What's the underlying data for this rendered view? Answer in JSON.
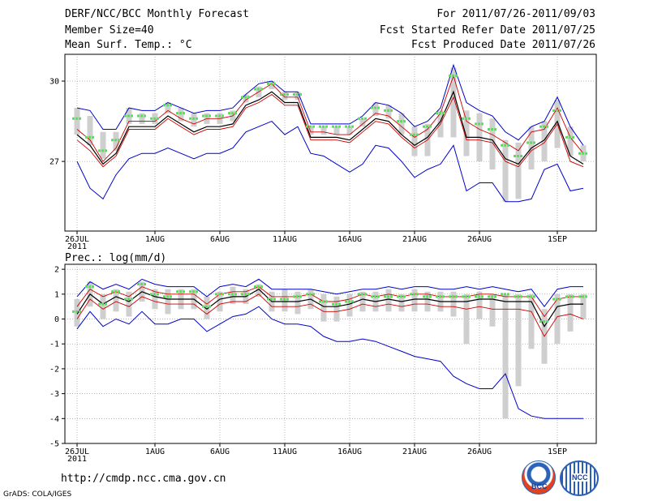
{
  "header": {
    "title": "DERF/NCC/BCC Monthly Forecast",
    "member_size": "Member Size=40",
    "var_label": "Mean Surf. Temp.: °C",
    "for_range": "For 2011/07/26-2011/09/03",
    "fcst_started": "Fcst Started Refer Date 2011/07/25",
    "fcst_produced": "Fcst Produced Date 2011/07/26"
  },
  "precip_label": "Prec.: log(mm/d)",
  "footer": {
    "url": "http://cmdp.ncc.cma.gov.cn",
    "grads": "GrADS: COLA/IGES"
  },
  "logos": {
    "left": "BCC",
    "right": "NCC"
  },
  "colors": {
    "max_min": "#0000cc",
    "spread": "#cc0000",
    "mean": "#000000",
    "obs": "#44ee44",
    "bars": "#cfcfcf",
    "grid": "#888888"
  },
  "chart_data": [
    {
      "type": "line",
      "title": "Mean Surf. Temp.: °C",
      "x": [
        0,
        1,
        2,
        3,
        4,
        5,
        6,
        7,
        8,
        9,
        10,
        11,
        12,
        13,
        14,
        15,
        16,
        17,
        18,
        19,
        20,
        21,
        22,
        23,
        24,
        25,
        26,
        27,
        28,
        29,
        30,
        31,
        32,
        33,
        34,
        35,
        36,
        37,
        38,
        39
      ],
      "x_tick_labels": [
        "26JUL\n2011",
        "1AUG",
        "6AUG",
        "11AUG",
        "16AUG",
        "21AUG",
        "26AUG",
        "1SEP"
      ],
      "x_tick_positions": [
        0,
        6,
        11,
        16,
        21,
        26,
        31,
        37
      ],
      "ylim": [
        24.4,
        31.0
      ],
      "y_ticks": [
        27,
        30
      ],
      "series": [
        {
          "name": "max",
          "values": [
            29.0,
            28.9,
            28.2,
            28.2,
            29.0,
            28.9,
            28.9,
            29.2,
            29.0,
            28.8,
            28.9,
            28.9,
            29.0,
            29.5,
            29.9,
            30.0,
            29.6,
            29.6,
            28.4,
            28.4,
            28.4,
            28.4,
            28.7,
            29.2,
            29.1,
            28.8,
            28.3,
            28.5,
            29.0,
            30.6,
            29.2,
            28.9,
            28.7,
            28.1,
            27.8,
            28.3,
            28.5,
            29.4,
            28.3,
            27.6
          ]
        },
        {
          "name": "upper_spread",
          "values": [
            28.2,
            27.8,
            27.0,
            27.5,
            28.5,
            28.5,
            28.5,
            28.9,
            28.6,
            28.4,
            28.6,
            28.6,
            28.7,
            29.3,
            29.6,
            29.9,
            29.4,
            29.4,
            28.1,
            28.1,
            28.0,
            28.0,
            28.4,
            28.8,
            28.7,
            28.3,
            27.9,
            28.2,
            28.8,
            30.2,
            28.5,
            28.2,
            28.0,
            27.7,
            27.4,
            28.1,
            28.2,
            29.0,
            27.9,
            27.3
          ]
        },
        {
          "name": "mean",
          "values": [
            28.0,
            27.6,
            26.9,
            27.3,
            28.3,
            28.3,
            28.3,
            28.7,
            28.4,
            28.1,
            28.3,
            28.3,
            28.4,
            29.1,
            29.3,
            29.6,
            29.2,
            29.2,
            27.9,
            27.9,
            27.9,
            27.8,
            28.2,
            28.6,
            28.5,
            28.0,
            27.6,
            27.9,
            28.5,
            29.6,
            27.9,
            27.9,
            27.8,
            27.1,
            26.9,
            27.5,
            27.8,
            28.5,
            27.2,
            26.9
          ]
        },
        {
          "name": "lower_spread",
          "values": [
            27.8,
            27.4,
            26.8,
            27.2,
            28.2,
            28.2,
            28.2,
            28.6,
            28.3,
            28.0,
            28.2,
            28.2,
            28.3,
            29.0,
            29.2,
            29.5,
            29.1,
            29.1,
            27.8,
            27.8,
            27.8,
            27.7,
            28.1,
            28.5,
            28.4,
            27.9,
            27.5,
            27.8,
            28.4,
            29.4,
            27.8,
            27.8,
            27.7,
            27.0,
            26.8,
            27.4,
            27.7,
            28.4,
            27.0,
            26.8
          ]
        },
        {
          "name": "min",
          "values": [
            27.0,
            26.0,
            25.6,
            26.5,
            27.1,
            27.3,
            27.3,
            27.5,
            27.3,
            27.1,
            27.3,
            27.3,
            27.5,
            28.1,
            28.3,
            28.5,
            28.0,
            28.3,
            27.3,
            27.2,
            26.9,
            26.6,
            26.9,
            27.6,
            27.5,
            27.0,
            26.4,
            26.7,
            26.9,
            27.6,
            25.9,
            26.2,
            26.2,
            25.5,
            25.5,
            25.6,
            26.7,
            26.9,
            25.9,
            26.0
          ]
        },
        {
          "name": "obs",
          "values": [
            28.6,
            27.9,
            27.4,
            27.8,
            28.7,
            28.7,
            28.6,
            29.1,
            28.8,
            28.6,
            28.7,
            28.7,
            28.8,
            29.4,
            29.7,
            29.9,
            29.5,
            29.5,
            28.3,
            28.3,
            28.3,
            28.3,
            28.6,
            29.0,
            28.9,
            28.5,
            28.0,
            28.3,
            28.8,
            30.2,
            28.6,
            28.4,
            28.2,
            27.6,
            27.2,
            27.7,
            28.3,
            28.9,
            27.9,
            27.3
          ]
        }
      ],
      "bars_low": [
        28.0,
        27.6,
        27.1,
        27.4,
        28.4,
        28.4,
        28.4,
        28.8,
        28.5,
        28.3,
        28.4,
        28.4,
        28.5,
        29.2,
        29.4,
        29.7,
        29.3,
        29.3,
        28.0,
        28.0,
        28.0,
        28.0,
        28.3,
        28.7,
        28.6,
        28.0,
        27.2,
        27.2,
        27.9,
        27.9,
        27.2,
        27.0,
        26.7,
        25.5,
        25.6,
        26.7,
        27.0,
        27.5,
        27.2,
        27.0
      ],
      "bars_high": [
        29.0,
        28.7,
        28.1,
        28.1,
        29.0,
        28.8,
        28.8,
        29.2,
        29.0,
        28.8,
        28.8,
        28.8,
        28.9,
        29.5,
        29.8,
        30.0,
        29.6,
        29.6,
        28.3,
        28.3,
        28.3,
        28.3,
        28.6,
        29.2,
        29.1,
        28.8,
        28.3,
        28.4,
        28.9,
        30.5,
        28.9,
        28.8,
        28.6,
        27.8,
        27.7,
        28.3,
        28.5,
        29.3,
        28.3,
        27.6
      ]
    },
    {
      "type": "line",
      "title": "Prec.: log(mm/d)",
      "x": [
        0,
        1,
        2,
        3,
        4,
        5,
        6,
        7,
        8,
        9,
        10,
        11,
        12,
        13,
        14,
        15,
        16,
        17,
        18,
        19,
        20,
        21,
        22,
        23,
        24,
        25,
        26,
        27,
        28,
        29,
        30,
        31,
        32,
        33,
        34,
        35,
        36,
        37,
        38,
        39
      ],
      "x_tick_labels": [
        "26JUL\n2011",
        "1AUG",
        "6AUG",
        "11AUG",
        "16AUG",
        "21AUG",
        "26AUG",
        "1SEP"
      ],
      "x_tick_positions": [
        0,
        6,
        11,
        16,
        21,
        26,
        31,
        37
      ],
      "ylim": [
        -5,
        2.2
      ],
      "y_ticks": [
        -5,
        -4,
        -3,
        -2,
        -1,
        0,
        1,
        2
      ],
      "series": [
        {
          "name": "max",
          "values": [
            0.9,
            1.5,
            1.2,
            1.4,
            1.2,
            1.6,
            1.4,
            1.3,
            1.3,
            1.3,
            0.9,
            1.3,
            1.4,
            1.3,
            1.6,
            1.2,
            1.2,
            1.2,
            1.2,
            1.1,
            1.0,
            1.1,
            1.2,
            1.2,
            1.3,
            1.2,
            1.3,
            1.3,
            1.2,
            1.2,
            1.3,
            1.2,
            1.3,
            1.2,
            1.1,
            1.2,
            0.5,
            1.2,
            1.3,
            1.3
          ]
        },
        {
          "name": "upper_spread",
          "values": [
            0.5,
            1.2,
            0.9,
            1.1,
            0.9,
            1.3,
            1.1,
            1.0,
            1.0,
            1.0,
            0.6,
            1.0,
            1.1,
            1.1,
            1.3,
            0.9,
            0.9,
            0.9,
            1.0,
            0.7,
            0.7,
            0.8,
            1.0,
            0.9,
            1.0,
            0.9,
            1.0,
            1.0,
            0.9,
            0.9,
            0.9,
            1.0,
            1.0,
            0.9,
            0.9,
            0.9,
            0.1,
            0.8,
            0.9,
            0.9
          ]
        },
        {
          "name": "mean",
          "values": [
            0.2,
            1.0,
            0.6,
            0.9,
            0.7,
            1.1,
            0.9,
            0.8,
            0.8,
            0.8,
            0.4,
            0.8,
            0.9,
            0.9,
            1.2,
            0.7,
            0.7,
            0.7,
            0.8,
            0.5,
            0.5,
            0.6,
            0.8,
            0.7,
            0.8,
            0.7,
            0.8,
            0.8,
            0.7,
            0.7,
            0.7,
            0.8,
            0.8,
            0.7,
            0.7,
            0.7,
            -0.3,
            0.5,
            0.6,
            0.6
          ]
        },
        {
          "name": "lower_spread",
          "values": [
            0.0,
            0.8,
            0.4,
            0.7,
            0.5,
            0.9,
            0.7,
            0.6,
            0.6,
            0.6,
            0.2,
            0.6,
            0.7,
            0.7,
            1.0,
            0.5,
            0.5,
            0.5,
            0.6,
            0.3,
            0.3,
            0.4,
            0.6,
            0.5,
            0.6,
            0.5,
            0.6,
            0.6,
            0.5,
            0.5,
            0.4,
            0.5,
            0.4,
            0.4,
            0.4,
            0.3,
            -0.7,
            0.1,
            0.2,
            0.0
          ]
        },
        {
          "name": "min",
          "values": [
            -0.4,
            0.3,
            -0.3,
            0.0,
            -0.2,
            0.3,
            -0.2,
            -0.2,
            0.0,
            0.0,
            -0.5,
            -0.2,
            0.1,
            0.2,
            0.5,
            0.0,
            -0.2,
            -0.2,
            -0.3,
            -0.7,
            -0.9,
            -0.9,
            -0.8,
            -0.9,
            -1.1,
            -1.3,
            -1.5,
            -1.6,
            -1.7,
            -2.3,
            -2.6,
            -2.8,
            -2.8,
            -2.2,
            -3.6,
            -3.9,
            -4.0,
            -4.0,
            -4.0,
            -4.0
          ]
        },
        {
          "name": "obs",
          "values": [
            0.3,
            1.3,
            0.6,
            1.1,
            0.8,
            1.4,
            1.0,
            0.9,
            1.1,
            1.1,
            0.5,
            1.0,
            1.0,
            1.0,
            1.3,
            0.8,
            0.8,
            0.9,
            1.0,
            0.7,
            0.6,
            0.7,
            1.0,
            0.9,
            0.9,
            0.9,
            1.0,
            0.9,
            0.9,
            0.9,
            0.9,
            0.9,
            0.9,
            1.0,
            0.9,
            0.9,
            -0.1,
            0.8,
            0.9,
            0.9
          ]
        }
      ],
      "bars_low": [
        -0.3,
        0.5,
        0.0,
        0.3,
        0.1,
        0.7,
        0.4,
        0.2,
        0.4,
        0.4,
        0.0,
        0.3,
        0.6,
        0.6,
        0.9,
        0.3,
        0.3,
        0.2,
        0.4,
        -0.1,
        -0.1,
        0.1,
        0.3,
        0.3,
        0.3,
        0.3,
        0.3,
        0.3,
        0.3,
        0.1,
        -1.0,
        0.0,
        -0.3,
        -4.0,
        -2.7,
        -1.2,
        -1.8,
        -1.0,
        -0.5,
        0.0
      ],
      "bars_high": [
        0.8,
        1.5,
        1.0,
        1.2,
        1.1,
        1.5,
        1.2,
        1.2,
        1.2,
        1.2,
        0.9,
        1.1,
        1.3,
        1.2,
        1.4,
        1.1,
        1.2,
        1.1,
        1.2,
        1.0,
        0.9,
        1.0,
        1.1,
        1.1,
        1.2,
        1.0,
        1.2,
        1.1,
        1.1,
        1.1,
        1.0,
        1.1,
        1.0,
        1.0,
        1.0,
        1.0,
        0.4,
        1.0,
        1.0,
        1.0
      ]
    }
  ]
}
